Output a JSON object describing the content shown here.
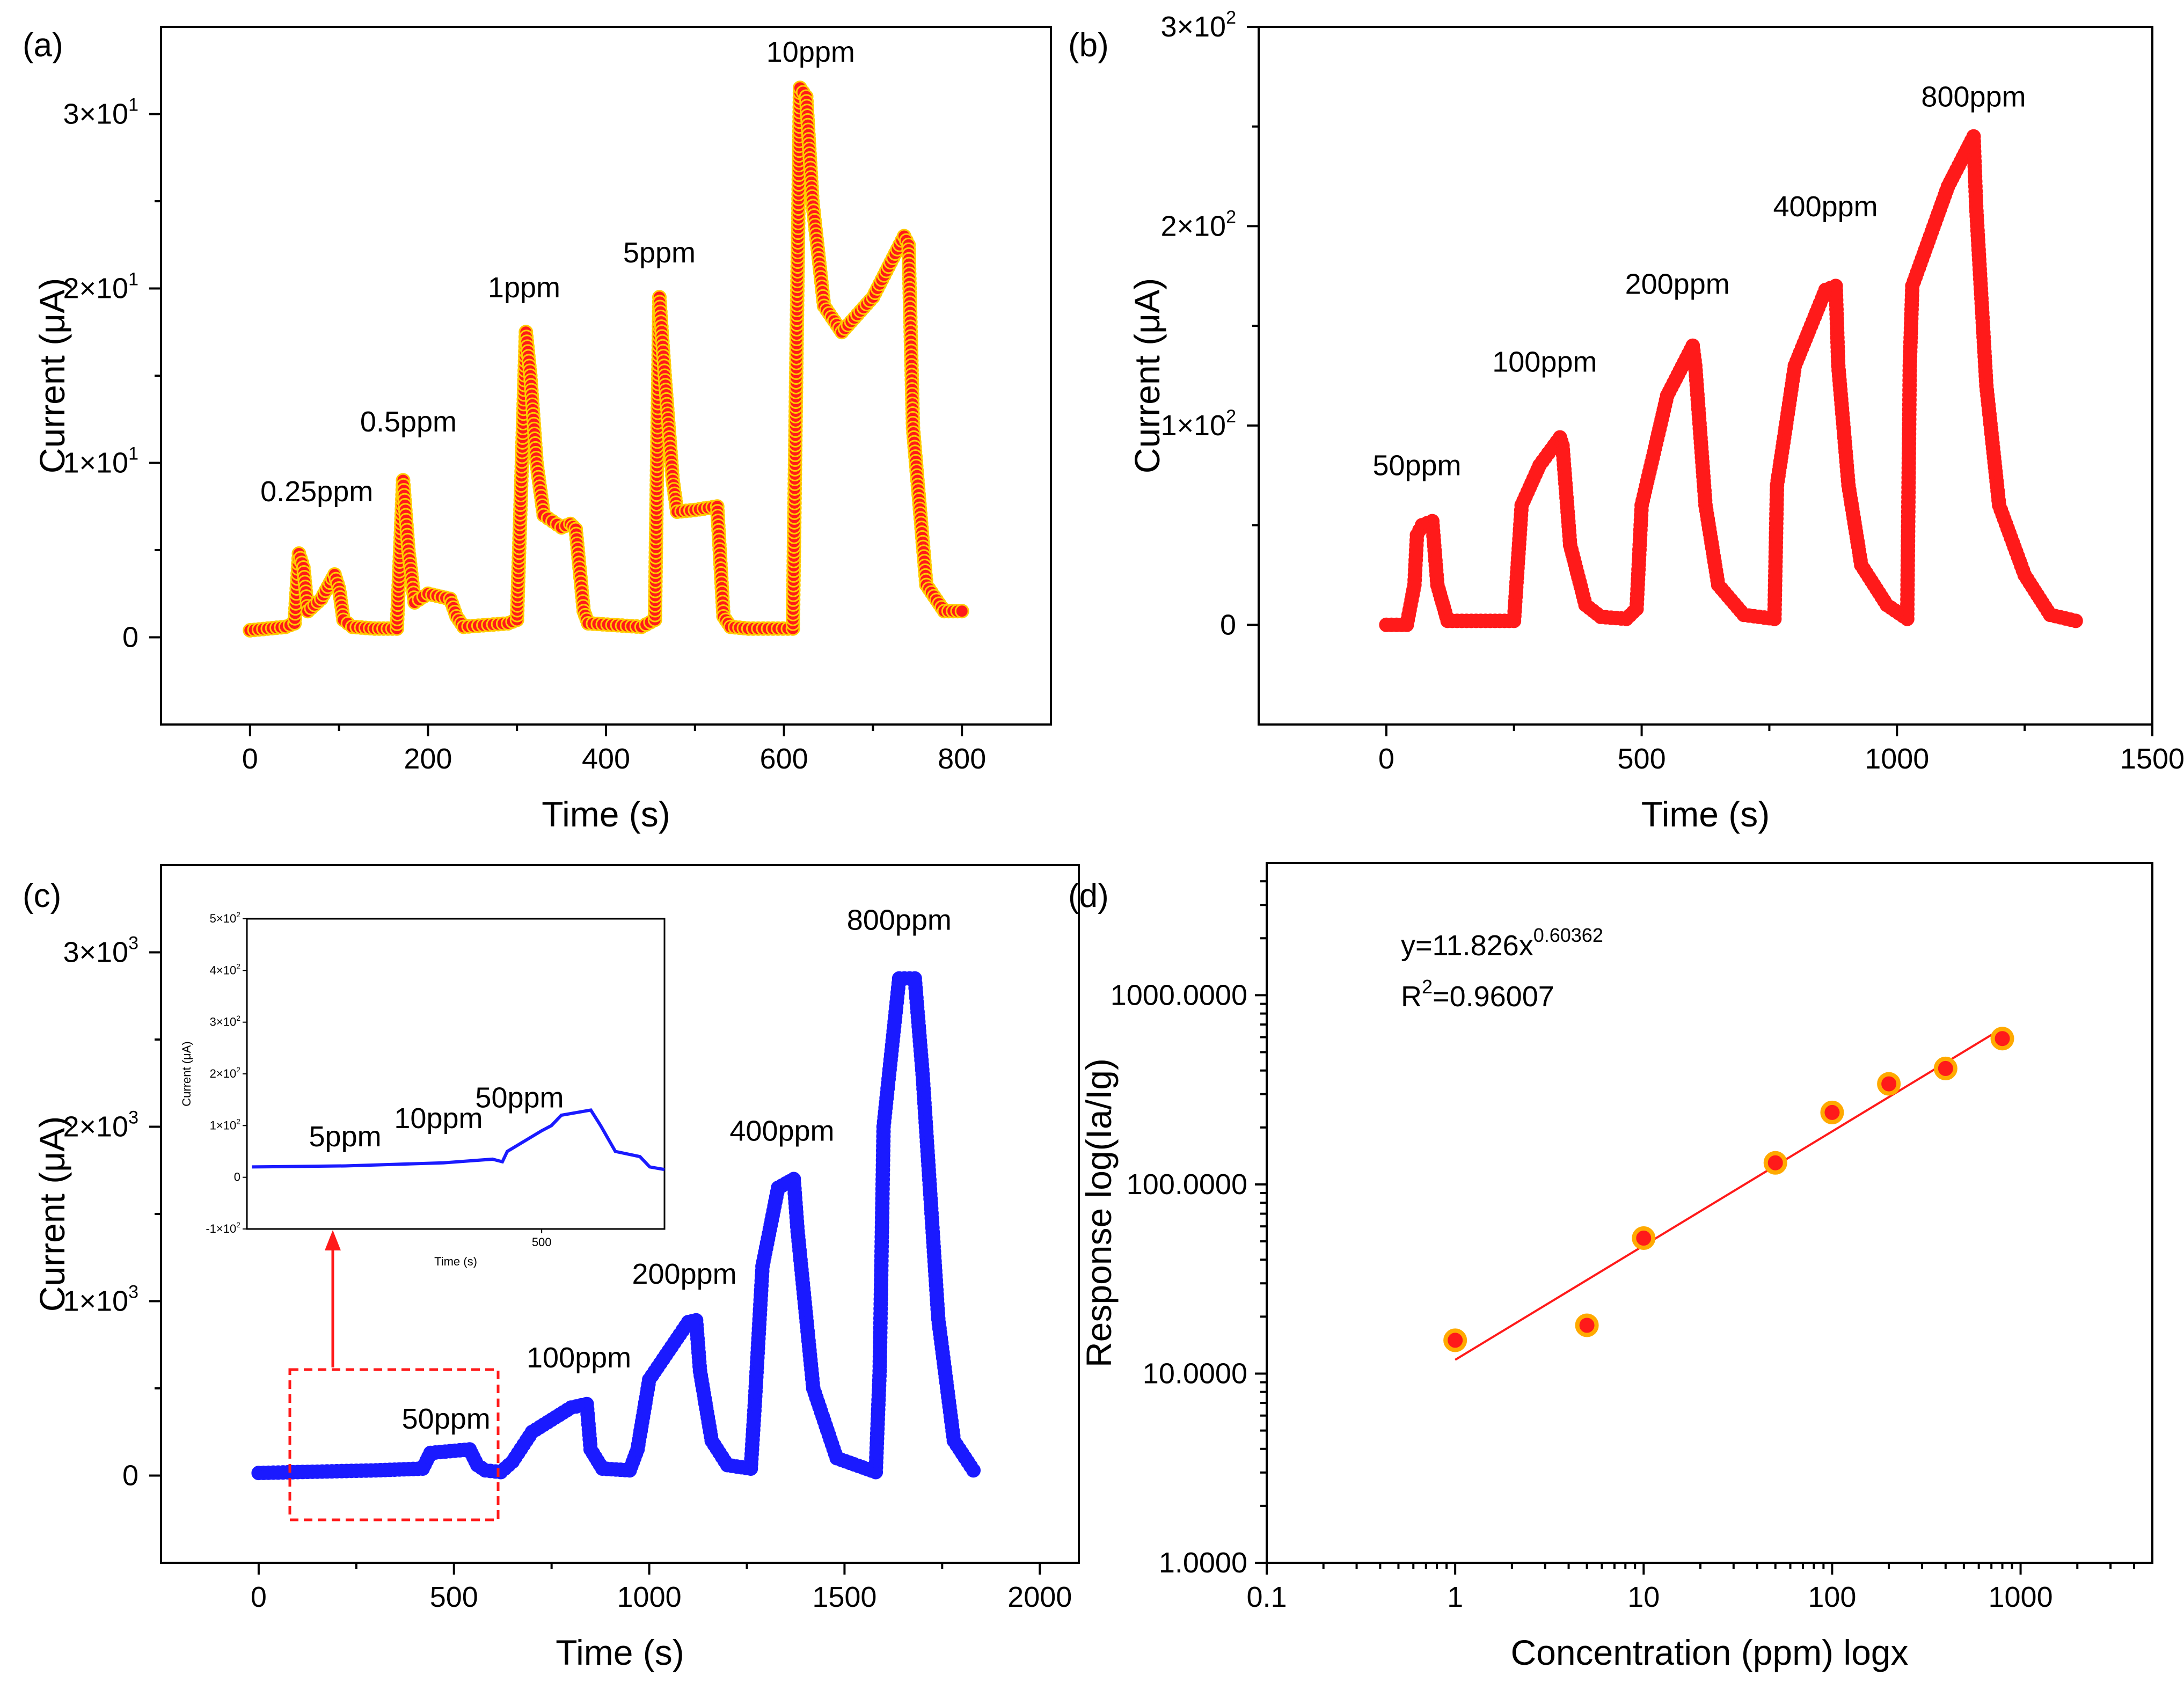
{
  "chart_data": [
    {
      "type": "line",
      "panel_label": "(a)",
      "xlabel": "Time (s)",
      "ylabel": "Current (μA)",
      "xlim": [
        -100,
        900
      ],
      "ylim": [
        -5,
        35
      ],
      "x_ticks": [
        0,
        200,
        400,
        600,
        800
      ],
      "x_tick_labels": [
        "0",
        "200",
        "400",
        "600",
        "800"
      ],
      "y_ticks": [
        0,
        10,
        20,
        30
      ],
      "y_tick_labels": [
        "0",
        "1×10",
        "2×10",
        "3×10"
      ],
      "y_tick_exponents": [
        "",
        "1",
        "1",
        "1"
      ],
      "series_color": "#ff1a1a",
      "marker_color": "#ffcc00",
      "series": [
        {
          "name": "current",
          "x": [
            0,
            20,
            40,
            50,
            55,
            60,
            65,
            80,
            95,
            100,
            105,
            115,
            140,
            165,
            172,
            178,
            185,
            200,
            225,
            232,
            240,
            290,
            300,
            310,
            315,
            322,
            330,
            350,
            360,
            366,
            375,
            380,
            440,
            455,
            460,
            466,
            475,
            480,
            500,
            525,
            532,
            540,
            560,
            610,
            618,
            625,
            632,
            645,
            665,
            700,
            735,
            740,
            745,
            760,
            780,
            800
          ],
          "y": [
            0.4,
            0.5,
            0.6,
            0.8,
            4.8,
            4.0,
            1.5,
            2.2,
            3.6,
            2.8,
            1.0,
            0.6,
            0.5,
            0.5,
            9.0,
            5.0,
            2.0,
            2.5,
            2.2,
            1.2,
            0.6,
            0.8,
            1.0,
            17.5,
            15.0,
            10.0,
            7.0,
            6.3,
            6.5,
            6.2,
            1.5,
            0.8,
            0.6,
            1.0,
            19.5,
            15.0,
            9.0,
            7.2,
            7.3,
            7.5,
            1.2,
            0.6,
            0.5,
            0.5,
            31.5,
            31.0,
            25.0,
            19.0,
            17.5,
            19.5,
            23.0,
            22.5,
            12.0,
            3.0,
            1.5,
            1.5
          ]
        }
      ],
      "annotations": [
        {
          "text": "0.25ppm",
          "x": 75,
          "y": 7.8
        },
        {
          "text": "0.5ppm",
          "x": 178,
          "y": 11.8
        },
        {
          "text": "1ppm",
          "x": 308,
          "y": 19.5
        },
        {
          "text": "5ppm",
          "x": 460,
          "y": 21.5
        },
        {
          "text": "10ppm",
          "x": 630,
          "y": 33
        }
      ]
    },
    {
      "type": "line",
      "panel_label": "(b)",
      "xlabel": "Time (s)",
      "ylabel": "Current (μA)",
      "xlim": [
        -250,
        1500
      ],
      "ylim": [
        -50,
        300
      ],
      "x_ticks": [
        0,
        500,
        1000,
        1500
      ],
      "x_tick_labels": [
        "0",
        "500",
        "1000",
        "1500"
      ],
      "y_ticks": [
        0,
        100,
        200,
        300
      ],
      "y_tick_labels": [
        "0",
        "1×10",
        "2×10",
        "3×10"
      ],
      "y_tick_exponents": [
        "",
        "2",
        "2",
        "2"
      ],
      "series_color": "#ff1a1a",
      "marker_color": "#ff1a1a",
      "series": [
        {
          "name": "current",
          "x": [
            0,
            40,
            55,
            60,
            70,
            90,
            100,
            120,
            250,
            265,
            300,
            340,
            345,
            360,
            390,
            420,
            470,
            490,
            500,
            550,
            600,
            605,
            625,
            650,
            700,
            760,
            765,
            800,
            860,
            880,
            885,
            905,
            930,
            980,
            1020,
            1025,
            1030,
            1100,
            1150,
            1155,
            1175,
            1200,
            1250,
            1300,
            1350
          ],
          "y": [
            0,
            0,
            20,
            45,
            50,
            52,
            20,
            2,
            2,
            60,
            80,
            94,
            90,
            40,
            10,
            4,
            3,
            8,
            60,
            115,
            140,
            130,
            60,
            20,
            5,
            3,
            70,
            130,
            168,
            170,
            130,
            70,
            30,
            10,
            3,
            130,
            170,
            220,
            245,
            210,
            120,
            60,
            25,
            5,
            2
          ]
        }
      ],
      "annotations": [
        {
          "text": "50ppm",
          "x": 60,
          "y": 75
        },
        {
          "text": "100ppm",
          "x": 310,
          "y": 127
        },
        {
          "text": "200ppm",
          "x": 570,
          "y": 166
        },
        {
          "text": "400ppm",
          "x": 860,
          "y": 205
        },
        {
          "text": "800ppm",
          "x": 1150,
          "y": 260
        }
      ]
    },
    {
      "type": "line",
      "panel_label": "(c)",
      "xlabel": "Time (s)",
      "ylabel": "Current (μA)",
      "xlim": [
        -250,
        2100
      ],
      "ylim": [
        -500,
        3500
      ],
      "x_ticks": [
        0,
        500,
        1000,
        1500,
        2000
      ],
      "x_tick_labels": [
        "0",
        "500",
        "1000",
        "1500",
        "2000"
      ],
      "y_ticks": [
        0,
        1000,
        2000,
        3000
      ],
      "y_tick_labels": [
        "0",
        "1×10",
        "2×10",
        "3×10"
      ],
      "y_tick_exponents": [
        "",
        "3",
        "3",
        "3"
      ],
      "series_color": "#1a1aff",
      "marker_color": "#1a1aff",
      "series": [
        {
          "name": "current",
          "x": [
            0,
            100,
            200,
            300,
            420,
            440,
            540,
            560,
            580,
            620,
            650,
            700,
            800,
            840,
            850,
            880,
            950,
            970,
            1000,
            1100,
            1120,
            1130,
            1160,
            1200,
            1260,
            1270,
            1290,
            1330,
            1370,
            1380,
            1420,
            1480,
            1580,
            1590,
            1600,
            1640,
            1680,
            1700,
            1740,
            1780,
            1830
          ],
          "y": [
            15,
            20,
            25,
            30,
            40,
            130,
            150,
            60,
            30,
            20,
            80,
            250,
            390,
            410,
            150,
            40,
            30,
            150,
            550,
            880,
            890,
            600,
            200,
            60,
            40,
            400,
            1200,
            1650,
            1700,
            1400,
            500,
            100,
            20,
            600,
            2000,
            2850,
            2850,
            2300,
            900,
            200,
            30
          ]
        }
      ],
      "annotations": [
        {
          "text": "50ppm",
          "x": 480,
          "y": 270
        },
        {
          "text": "100ppm",
          "x": 820,
          "y": 620
        },
        {
          "text": "200ppm",
          "x": 1090,
          "y": 1100
        },
        {
          "text": "400ppm",
          "x": 1340,
          "y": 1920
        },
        {
          "text": "800ppm",
          "x": 1640,
          "y": 3130
        }
      ],
      "inset": {
        "xlabel": "Time (s)",
        "ylabel": "Current (μA)",
        "xlim": [
          -100,
          750
        ],
        "ylim": [
          -100,
          500
        ],
        "x_ticks": [
          500
        ],
        "x_tick_labels": [
          "500"
        ],
        "y_ticks": [
          -100,
          0,
          100,
          200,
          300,
          400,
          500
        ],
        "y_tick_labels": [
          "-1×10",
          "0",
          "1×10",
          "2×10",
          "3×10",
          "4×10",
          "5×10"
        ],
        "y_tick_exponents": [
          "2",
          "",
          "2",
          "2",
          "2",
          "2",
          "2"
        ],
        "series": [
          {
            "name": "current",
            "x": [
              -90,
              100,
              200,
              300,
              400,
              420,
              430,
              500,
              520,
              540,
              600,
              620,
              650,
              700,
              720,
              750
            ],
            "y": [
              20,
              22,
              25,
              28,
              35,
              30,
              50,
              90,
              100,
              120,
              130,
              100,
              50,
              40,
              20,
              15
            ]
          }
        ],
        "annotations": [
          {
            "text": "5ppm",
            "x": 100,
            "y": 60
          },
          {
            "text": "10ppm",
            "x": 290,
            "y": 95
          },
          {
            "text": "50ppm",
            "x": 455,
            "y": 135
          }
        ]
      }
    },
    {
      "type": "scatter",
      "panel_label": "(d)",
      "xlabel": "Concentration (ppm) logx",
      "ylabel": "Response log(Ia/Ig)",
      "xscale": "log",
      "yscale": "log",
      "xlim": [
        0.1,
        5000
      ],
      "ylim": [
        1,
        5000
      ],
      "x_ticks": [
        0.1,
        1,
        10,
        100,
        1000
      ],
      "x_tick_labels": [
        "0.1",
        "1",
        "10",
        "100",
        "1000"
      ],
      "y_ticks": [
        1,
        10,
        100,
        1000
      ],
      "y_tick_labels": [
        "1.0000",
        "10.0000",
        "100.0000",
        "1000.0000"
      ],
      "series_color": "#ff1a1a",
      "marker_color": "#ffaa00",
      "series": [
        {
          "name": "response",
          "x": [
            1,
            5,
            10,
            50,
            100,
            200,
            400,
            800
          ],
          "y": [
            15,
            18,
            52,
            130,
            240,
            340,
            410,
            590
          ]
        }
      ],
      "fit": {
        "equation_prefix": "y=11.826x",
        "equation_exponent": "0.60362",
        "r2_prefix": "R",
        "r2_superscript": "2",
        "r2_value": "=0.96007",
        "a": 11.826,
        "b": 0.60362,
        "x_range": [
          1,
          800
        ]
      }
    }
  ]
}
